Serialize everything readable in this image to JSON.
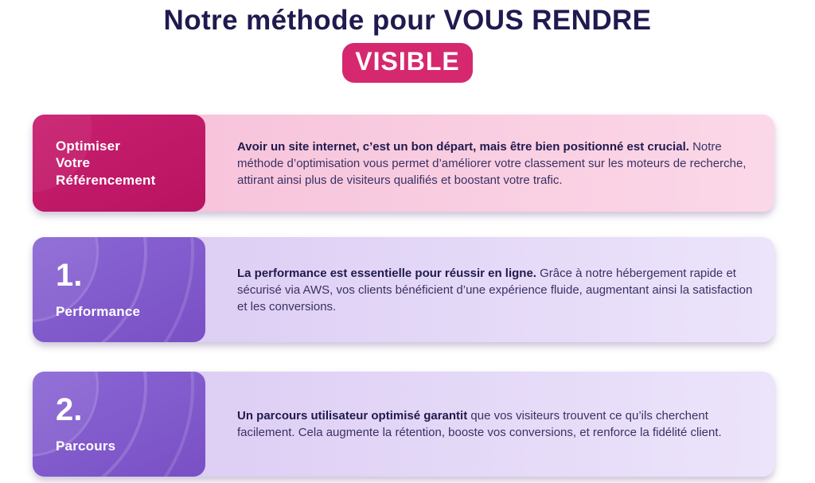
{
  "header": {
    "title": "Notre méthode pour VOUS RENDRE",
    "badge": "VISIBLE"
  },
  "colors": {
    "title_text": "#1f1a4f",
    "badge_bg": "#d5286f",
    "card1_left_bg": "#c11a68",
    "card1_right_bg": "#f8cadd",
    "card23_left_bg": "#7d55c8",
    "card23_right_bg": "#ded0f6",
    "text_bold": "#201a4d",
    "text_regular": "#3a3163"
  },
  "cards": [
    {
      "theme": "pink",
      "label_lines": [
        "Optimiser",
        "Votre",
        "Référencement"
      ],
      "lead": "Avoir un site internet, c’est un bon départ, mais être bien positionné est crucial.",
      "body": " Notre méthode d’optimisation vous permet d’améliorer votre classement sur les moteurs de recherche, attirant ainsi plus de visiteurs qualifiés et boostant votre trafic."
    },
    {
      "theme": "purple",
      "number": "1.",
      "label": "Performance",
      "lead": "La performance est essentielle pour réussir en ligne.",
      "body": " Grâce à notre hébergement rapide et sécurisé via AWS, vos clients bénéficient d’une expérience fluide, augmentant ainsi la satisfaction et les conversions."
    },
    {
      "theme": "purple",
      "number": "2.",
      "label": "Parcours",
      "lead": "Un parcours utilisateur optimisé garantit",
      "body": " que vos visiteurs trouvent ce qu’ils cherchent facilement. Cela augmente la rétention, booste vos conversions, et renforce la fidélité client."
    }
  ]
}
